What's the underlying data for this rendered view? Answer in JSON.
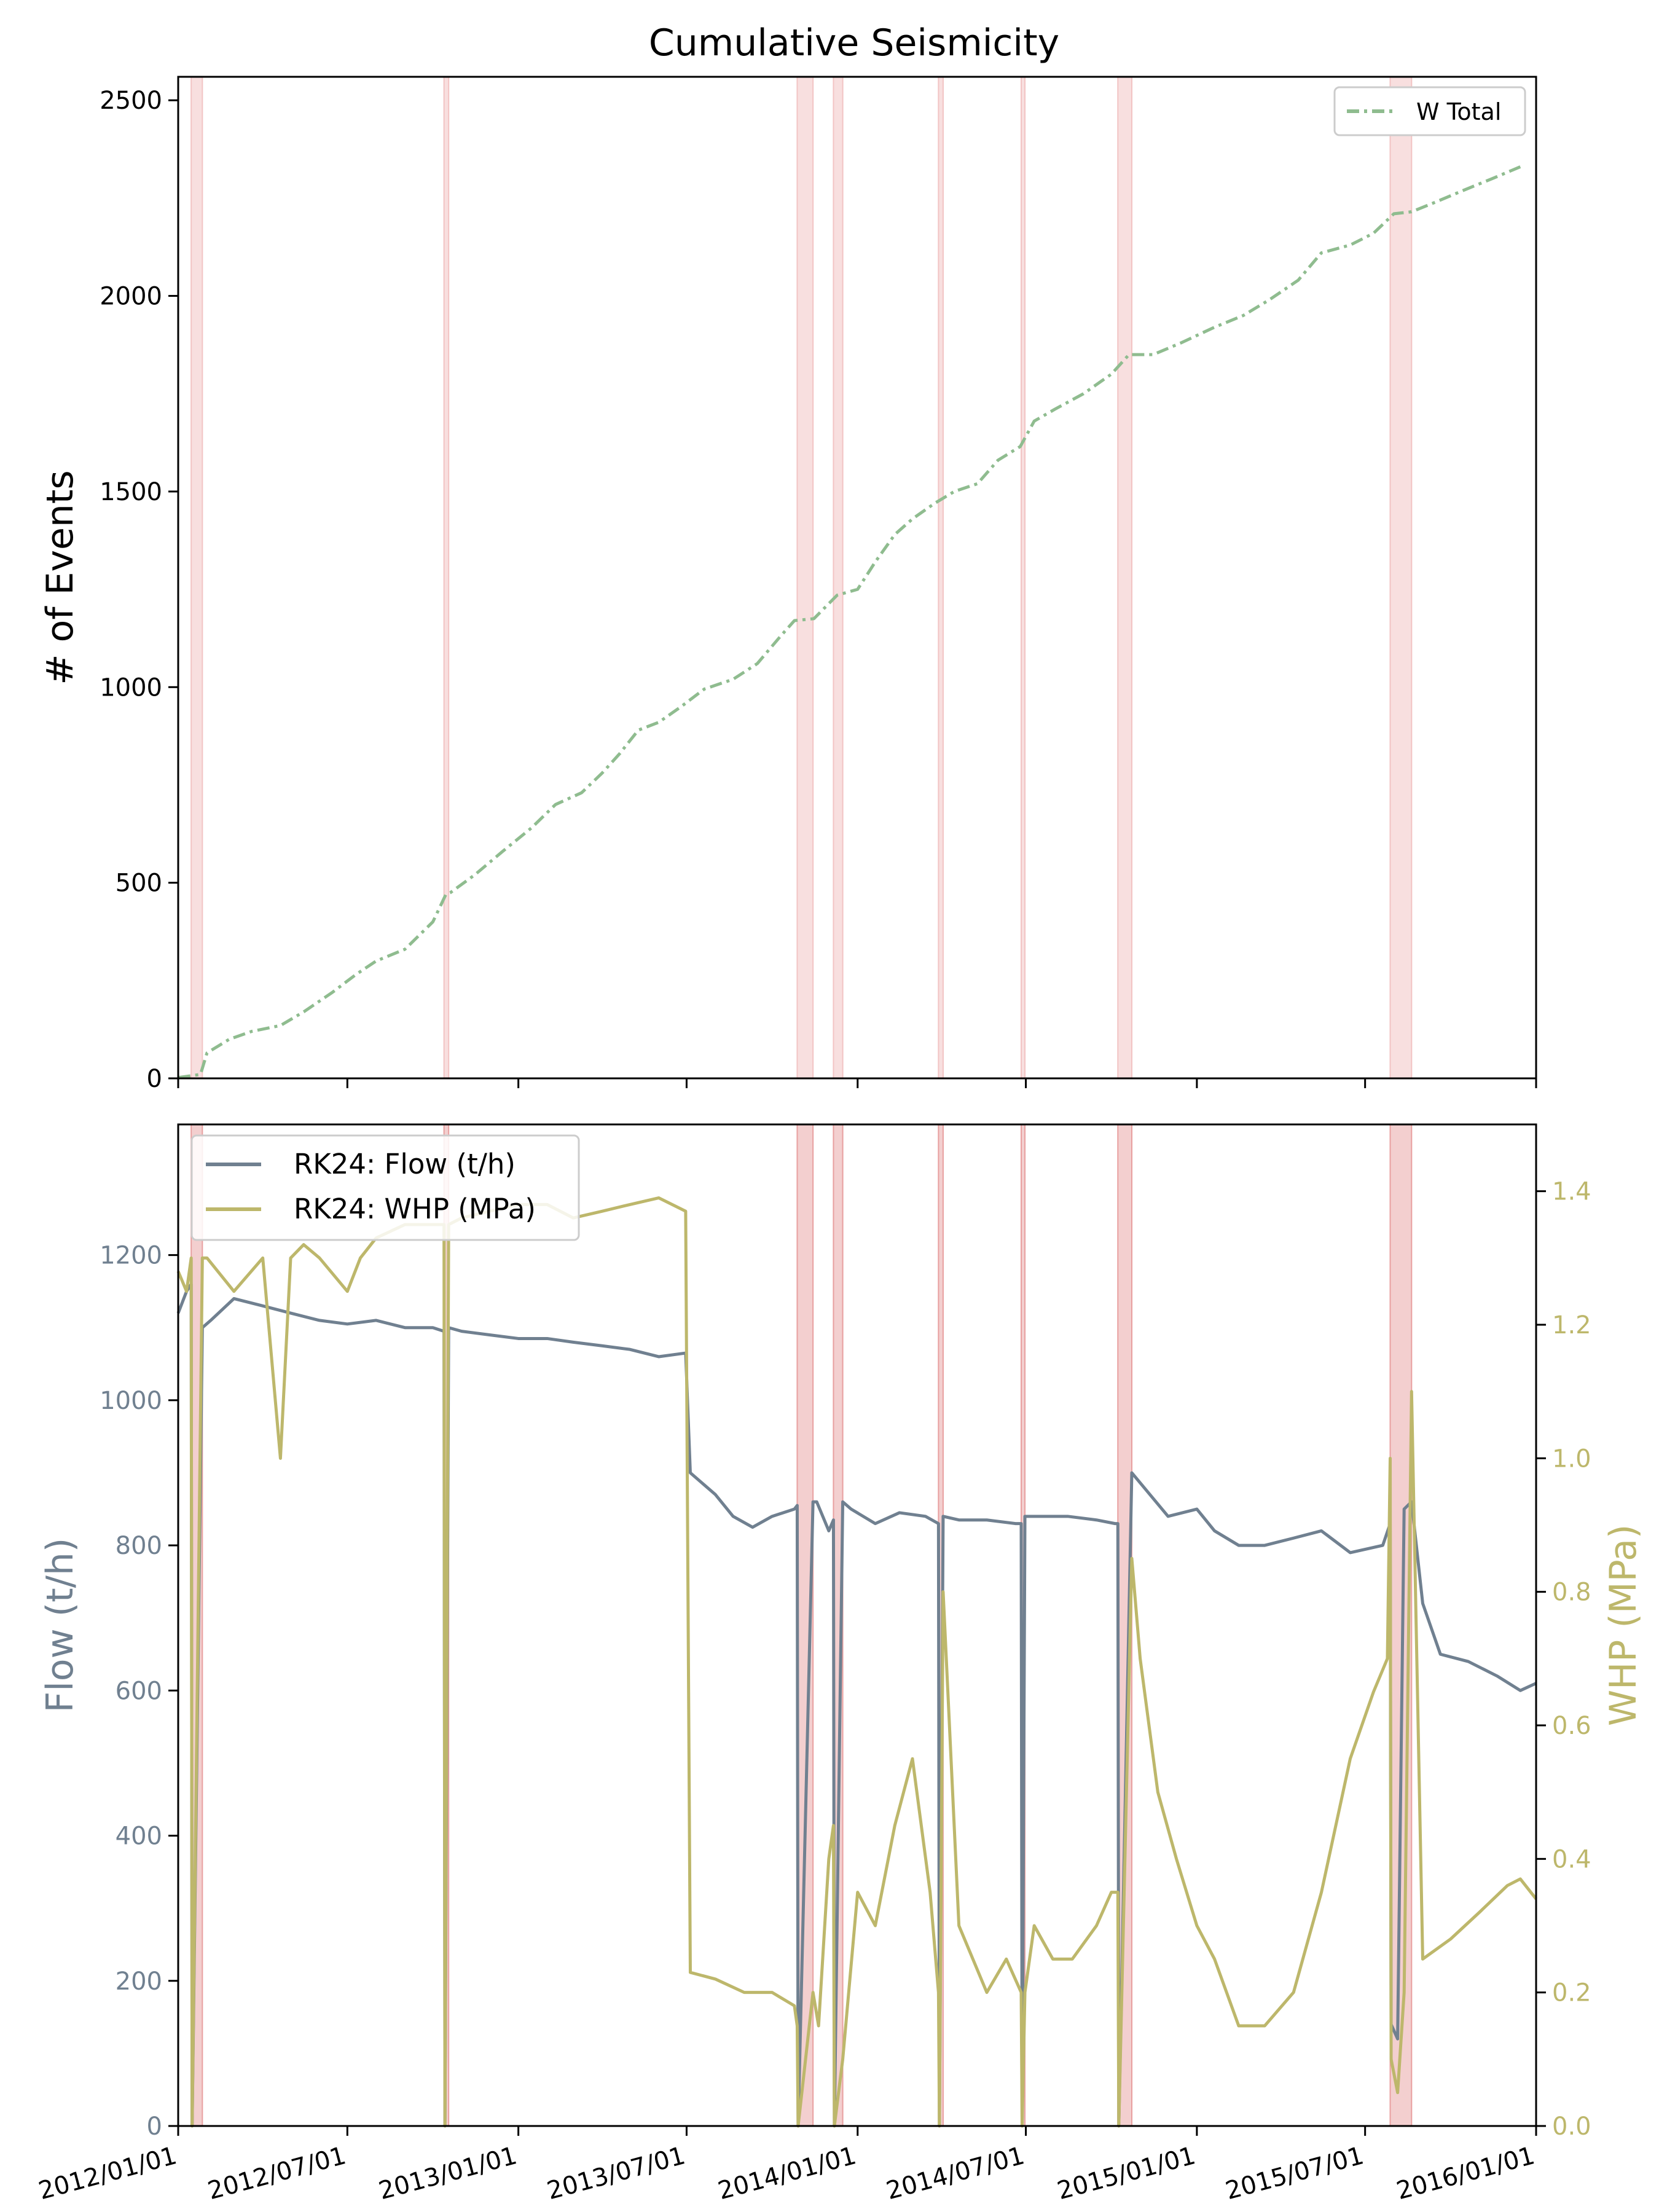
{
  "figure": {
    "title": "Cumulative Seismicity"
  },
  "colors": {
    "cumulative": "#8fbc8f",
    "flow": "#708090",
    "whp": "#bdb76b",
    "shade_top": "#f2c4c4",
    "shade_bottom": "#e8a0a0",
    "axis": "#000000"
  },
  "chart_data": [
    {
      "type": "line",
      "title": "Cumulative Seismicity",
      "xlabel": "",
      "ylabel": "# of Events",
      "xlim": [
        "2012-01-01",
        "2016-01-01"
      ],
      "ylim": [
        0,
        2560
      ],
      "x_ticks": [
        "2012/01/01",
        "2012/07/01",
        "2013/01/01",
        "2013/07/01",
        "2014/01/01",
        "2014/07/01",
        "2015/01/01",
        "2015/07/01",
        "2016/01/01"
      ],
      "y_ticks": [
        0,
        500,
        1000,
        1500,
        2000,
        2500
      ],
      "grid": false,
      "legend": "top-right",
      "shaded_periods": [
        [
          "2012-01-15",
          "2012-01-27"
        ],
        [
          "2012-10-13",
          "2012-10-18"
        ],
        [
          "2013-10-28",
          "2013-11-14"
        ],
        [
          "2013-12-06",
          "2013-12-16"
        ],
        [
          "2014-03-29",
          "2014-04-03"
        ],
        [
          "2014-06-26",
          "2014-06-30"
        ],
        [
          "2014-10-08",
          "2014-10-23"
        ],
        [
          "2015-07-28",
          "2015-08-20"
        ]
      ],
      "series": [
        {
          "name": "W Total",
          "style": "dashdot",
          "x": [
            "2012-01-01",
            "2012-01-25",
            "2012-02-01",
            "2012-02-25",
            "2012-03-20",
            "2012-04-20",
            "2012-05-15",
            "2012-06-15",
            "2012-07-10",
            "2012-08-01",
            "2012-09-01",
            "2012-10-01",
            "2012-10-15",
            "2012-10-20",
            "2012-11-15",
            "2012-12-15",
            "2013-01-15",
            "2013-02-10",
            "2013-03-10",
            "2013-04-01",
            "2013-04-20",
            "2013-05-10",
            "2013-06-01",
            "2013-06-25",
            "2013-07-20",
            "2013-08-20",
            "2013-09-15",
            "2013-10-10",
            "2013-10-25",
            "2013-11-15",
            "2013-12-10",
            "2014-01-01",
            "2014-01-20",
            "2014-02-10",
            "2014-03-01",
            "2014-03-25",
            "2014-04-15",
            "2014-05-10",
            "2014-06-01",
            "2014-06-25",
            "2014-07-10",
            "2014-08-01",
            "2014-09-01",
            "2014-10-01",
            "2014-10-20",
            "2014-11-15",
            "2014-12-15",
            "2015-01-20",
            "2015-02-20",
            "2015-03-20",
            "2015-04-20",
            "2015-05-15",
            "2015-06-15",
            "2015-07-10",
            "2015-08-01",
            "2015-08-20",
            "2015-09-15",
            "2015-10-15",
            "2015-11-15",
            "2015-12-15"
          ],
          "y": [
            2,
            10,
            65,
            100,
            120,
            135,
            170,
            220,
            265,
            300,
            330,
            400,
            470,
            475,
            520,
            580,
            640,
            700,
            730,
            780,
            830,
            890,
            910,
            950,
            995,
            1020,
            1060,
            1130,
            1170,
            1175,
            1235,
            1250,
            1320,
            1390,
            1430,
            1470,
            1500,
            1520,
            1580,
            1615,
            1680,
            1710,
            1750,
            1800,
            1850,
            1850,
            1880,
            1920,
            1950,
            1990,
            2040,
            2110,
            2130,
            2160,
            2210,
            2215,
            2240,
            2270,
            2300,
            2330
          ]
        }
      ]
    },
    {
      "type": "line",
      "title": "",
      "xlabel": "",
      "ylabel": "Flow (t/h)",
      "y2label": "WHP (MPa)",
      "xlim": [
        "2012-01-01",
        "2016-01-01"
      ],
      "ylim": [
        0,
        1380
      ],
      "y2lim": [
        0,
        1.5
      ],
      "x_ticks": [
        "2012/01/01",
        "2012/07/01",
        "2013/01/01",
        "2013/07/01",
        "2014/01/01",
        "2014/07/01",
        "2015/01/01",
        "2015/07/01",
        "2016/01/01"
      ],
      "y_ticks": [
        0,
        200,
        400,
        600,
        800,
        1000,
        1200
      ],
      "y2_ticks": [
        "0.0",
        "0.2",
        "0.4",
        "0.6",
        "0.8",
        "1.0",
        "1.2",
        "1.4"
      ],
      "grid": false,
      "legend": "top-left",
      "series": [
        {
          "name": "RK24: Flow (t/h)",
          "axis": "left",
          "x": [
            "2012-01-01",
            "2012-01-10",
            "2012-01-15",
            "2012-01-16",
            "2012-01-27",
            "2012-02-05",
            "2012-03-01",
            "2012-04-01",
            "2012-05-01",
            "2012-06-01",
            "2012-07-01",
            "2012-08-01",
            "2012-09-01",
            "2012-10-01",
            "2012-10-13",
            "2012-10-14",
            "2012-10-18",
            "2012-11-01",
            "2012-12-01",
            "2013-01-01",
            "2013-02-01",
            "2013-03-01",
            "2013-04-01",
            "2013-05-01",
            "2013-06-01",
            "2013-06-30",
            "2013-07-05",
            "2013-08-01",
            "2013-08-20",
            "2013-09-10",
            "2013-10-01",
            "2013-10-25",
            "2013-10-28",
            "2013-10-29",
            "2013-11-14",
            "2013-11-18",
            "2013-12-01",
            "2013-12-06",
            "2013-12-07",
            "2013-12-16",
            "2013-12-25",
            "2014-01-20",
            "2014-02-15",
            "2014-03-15",
            "2014-03-29",
            "2014-03-30",
            "2014-04-03",
            "2014-04-20",
            "2014-05-20",
            "2014-06-20",
            "2014-06-26",
            "2014-06-27",
            "2014-06-30",
            "2014-07-15",
            "2014-08-15",
            "2014-09-15",
            "2014-10-05",
            "2014-10-08",
            "2014-10-09",
            "2014-10-23",
            "2014-11-05",
            "2014-12-01",
            "2015-01-01",
            "2015-01-20",
            "2015-02-15",
            "2015-03-15",
            "2015-04-15",
            "2015-05-15",
            "2015-06-15",
            "2015-07-20",
            "2015-07-28",
            "2015-07-29",
            "2015-08-05",
            "2015-08-12",
            "2015-08-20",
            "2015-09-01",
            "2015-09-20",
            "2015-10-20",
            "2015-11-20",
            "2015-12-15",
            "2016-01-01"
          ],
          "y": [
            1120,
            1150,
            1160,
            0,
            1100,
            1110,
            1140,
            1130,
            1120,
            1110,
            1105,
            1110,
            1100,
            1100,
            1095,
            0,
            1100,
            1095,
            1090,
            1085,
            1085,
            1080,
            1075,
            1070,
            1060,
            1065,
            900,
            870,
            840,
            825,
            840,
            850,
            855,
            0,
            860,
            860,
            820,
            835,
            0,
            860,
            850,
            830,
            845,
            840,
            830,
            0,
            840,
            835,
            835,
            830,
            830,
            0,
            840,
            840,
            840,
            835,
            830,
            830,
            0,
            900,
            880,
            840,
            850,
            820,
            800,
            800,
            810,
            820,
            790,
            800,
            830,
            140,
            120,
            850,
            860,
            720,
            650,
            640,
            620,
            600,
            610
          ]
        },
        {
          "name": "RK24: WHP (MPa)",
          "axis": "right",
          "x": [
            "2012-01-01",
            "2012-01-10",
            "2012-01-15",
            "2012-01-16",
            "2012-01-27",
            "2012-02-01",
            "2012-03-01",
            "2012-04-01",
            "2012-04-20",
            "2012-05-01",
            "2012-05-15",
            "2012-06-01",
            "2012-07-01",
            "2012-07-15",
            "2012-08-01",
            "2012-09-01",
            "2012-10-01",
            "2012-10-13",
            "2012-10-14",
            "2012-10-18",
            "2012-11-01",
            "2012-12-01",
            "2013-01-01",
            "2013-02-01",
            "2013-03-01",
            "2013-04-01",
            "2013-05-01",
            "2013-06-01",
            "2013-06-30",
            "2013-07-05",
            "2013-08-01",
            "2013-09-01",
            "2013-10-01",
            "2013-10-25",
            "2013-10-28",
            "2013-10-29",
            "2013-11-14",
            "2013-11-20",
            "2013-12-01",
            "2013-12-06",
            "2013-12-07",
            "2013-12-16",
            "2014-01-01",
            "2014-01-20",
            "2014-02-10",
            "2014-03-01",
            "2014-03-20",
            "2014-03-29",
            "2014-03-30",
            "2014-04-03",
            "2014-04-20",
            "2014-05-20",
            "2014-06-10",
            "2014-06-26",
            "2014-06-27",
            "2014-06-30",
            "2014-07-10",
            "2014-07-30",
            "2014-08-20",
            "2014-09-15",
            "2014-10-01",
            "2014-10-08",
            "2014-10-09",
            "2014-10-23",
            "2014-11-01",
            "2014-11-20",
            "2014-12-10",
            "2015-01-01",
            "2015-01-20",
            "2015-02-15",
            "2015-03-15",
            "2015-04-15",
            "2015-05-15",
            "2015-06-15",
            "2015-07-10",
            "2015-07-25",
            "2015-07-28",
            "2015-07-29",
            "2015-08-05",
            "2015-08-12",
            "2015-08-20",
            "2015-09-01",
            "2015-10-01",
            "2015-11-01",
            "2015-12-01",
            "2015-12-15",
            "2016-01-01"
          ],
          "y": [
            1.28,
            1.25,
            1.3,
            0.0,
            1.3,
            1.3,
            1.25,
            1.3,
            1.0,
            1.3,
            1.32,
            1.3,
            1.25,
            1.3,
            1.33,
            1.35,
            1.35,
            1.35,
            0.0,
            1.35,
            1.36,
            1.37,
            1.38,
            1.38,
            1.36,
            1.37,
            1.38,
            1.39,
            1.37,
            0.23,
            0.22,
            0.2,
            0.2,
            0.18,
            0.15,
            0.0,
            0.2,
            0.15,
            0.4,
            0.45,
            0.0,
            0.1,
            0.35,
            0.3,
            0.45,
            0.55,
            0.35,
            0.2,
            0.0,
            0.8,
            0.3,
            0.2,
            0.25,
            0.2,
            0.0,
            0.2,
            0.3,
            0.25,
            0.25,
            0.3,
            0.35,
            0.35,
            0.0,
            0.85,
            0.7,
            0.5,
            0.4,
            0.3,
            0.25,
            0.15,
            0.15,
            0.2,
            0.35,
            0.55,
            0.65,
            0.7,
            1.0,
            0.1,
            0.05,
            0.2,
            1.1,
            0.25,
            0.28,
            0.32,
            0.36,
            0.37,
            0.34
          ]
        }
      ]
    }
  ]
}
